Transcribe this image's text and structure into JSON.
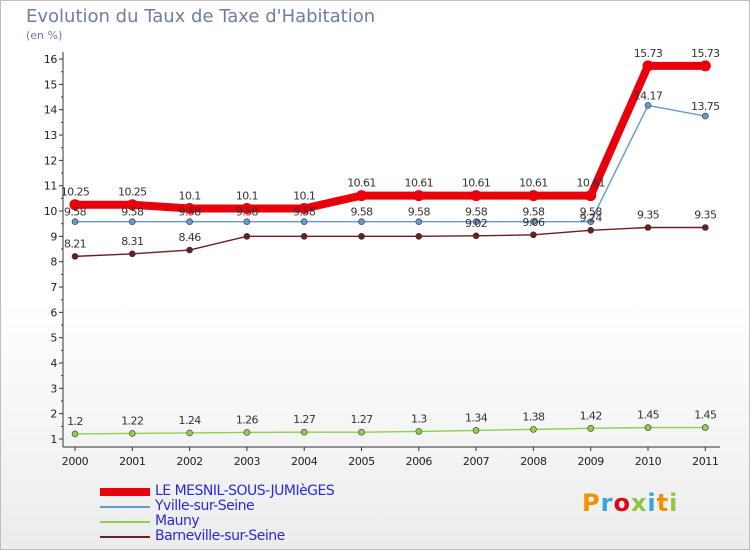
{
  "header": {
    "title": "Evolution du Taux de Taxe d'Habitation",
    "unit": "(en %)"
  },
  "logo": {
    "text": "Proxiti",
    "colors": [
      "#f39200",
      "#3aa5dc",
      "#e30613",
      "#8dc63f",
      "#3aa5dc",
      "#f39200",
      "#8dc63f"
    ]
  },
  "chart_data": {
    "type": "line",
    "title": "Evolution du Taux de Taxe d'Habitation",
    "subtitle": "(en %)",
    "xlabel": "",
    "ylabel": "",
    "x": [
      "2000",
      "2001",
      "2002",
      "2003",
      "2004",
      "2005",
      "2006",
      "2007",
      "2008",
      "2009",
      "2010",
      "2011"
    ],
    "ylim": [
      0.5,
      16.3
    ],
    "yticks": [
      1,
      2,
      3,
      4,
      5,
      6,
      7,
      8,
      9,
      10,
      11,
      12,
      13,
      14,
      15,
      16
    ],
    "grid": false,
    "legend_position": "bottom-left",
    "series": [
      {
        "name": "LE MESNIL-SOUS-JUMIèGES",
        "color": "#e8000b",
        "values": [
          10.25,
          10.25,
          10.1,
          10.1,
          10.1,
          10.61,
          10.61,
          10.61,
          10.61,
          10.61,
          15.73,
          15.73
        ],
        "labels": [
          "10.25",
          "10.25",
          "10.1",
          "10.1",
          "10.1",
          "10.61",
          "10.61",
          "10.61",
          "10.61",
          "10.61",
          "15.73",
          "15.73"
        ]
      },
      {
        "name": "Yville-sur-Seine",
        "color": "#6699cc",
        "values": [
          9.58,
          9.58,
          9.58,
          9.58,
          9.58,
          9.58,
          9.58,
          9.58,
          9.58,
          9.58,
          14.17,
          13.75
        ],
        "labels": [
          "9.58",
          "9.58",
          "9.58",
          "9.58",
          "9.58",
          "9.58",
          "9.58",
          "9.58",
          "9.58",
          "9.58",
          "14.17",
          "13.75"
        ]
      },
      {
        "name": "Mauny",
        "color": "#8fd14f",
        "values": [
          1.2,
          1.22,
          1.24,
          1.26,
          1.27,
          1.27,
          1.3,
          1.34,
          1.38,
          1.42,
          1.45,
          1.45
        ],
        "labels": [
          "1.2",
          "1.22",
          "1.24",
          "1.26",
          "1.27",
          "1.27",
          "1.3",
          "1.34",
          "1.38",
          "1.42",
          "1.45",
          "1.45"
        ]
      },
      {
        "name": "Barneville-sur-Seine",
        "color": "#6b1f24",
        "values": [
          8.21,
          8.31,
          8.46,
          9,
          9,
          9,
          9,
          9.02,
          9.06,
          9.24,
          9.35,
          9.35
        ],
        "labels": [
          "8.21",
          "8.31",
          "8.46",
          "",
          "",
          "",
          "",
          "9.02",
          "9.06",
          "9.24",
          "9.35",
          "9.35"
        ]
      }
    ]
  }
}
